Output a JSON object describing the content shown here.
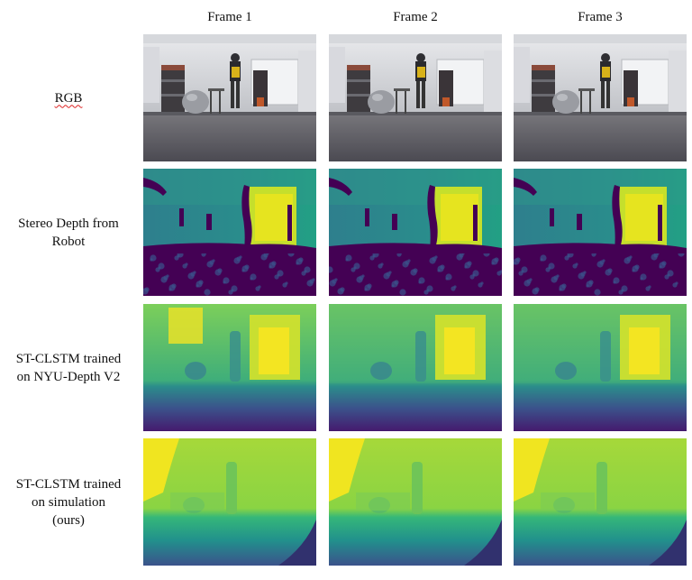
{
  "columns": [
    "Frame 1",
    "Frame 2",
    "Frame 3"
  ],
  "rows": [
    {
      "id": "rgb",
      "label_lines": [
        "RGB"
      ],
      "kind": "rgb"
    },
    {
      "id": "stereo",
      "label_lines": [
        "Stereo Depth from",
        "Robot"
      ],
      "kind": "stereo"
    },
    {
      "id": "nyu",
      "label_lines": [
        "ST-CLSTM trained",
        "on NYU-Depth V2"
      ],
      "kind": "nyu"
    },
    {
      "id": "sim",
      "label_lines": [
        "ST-CLSTM trained",
        "on simulation",
        "(ours)"
      ],
      "kind": "sim"
    }
  ],
  "colormap": {
    "viridis_dark": "#440154",
    "viridis_blue": "#31688e",
    "viridis_teal": "#35b779",
    "viridis_yellow": "#fde725"
  }
}
